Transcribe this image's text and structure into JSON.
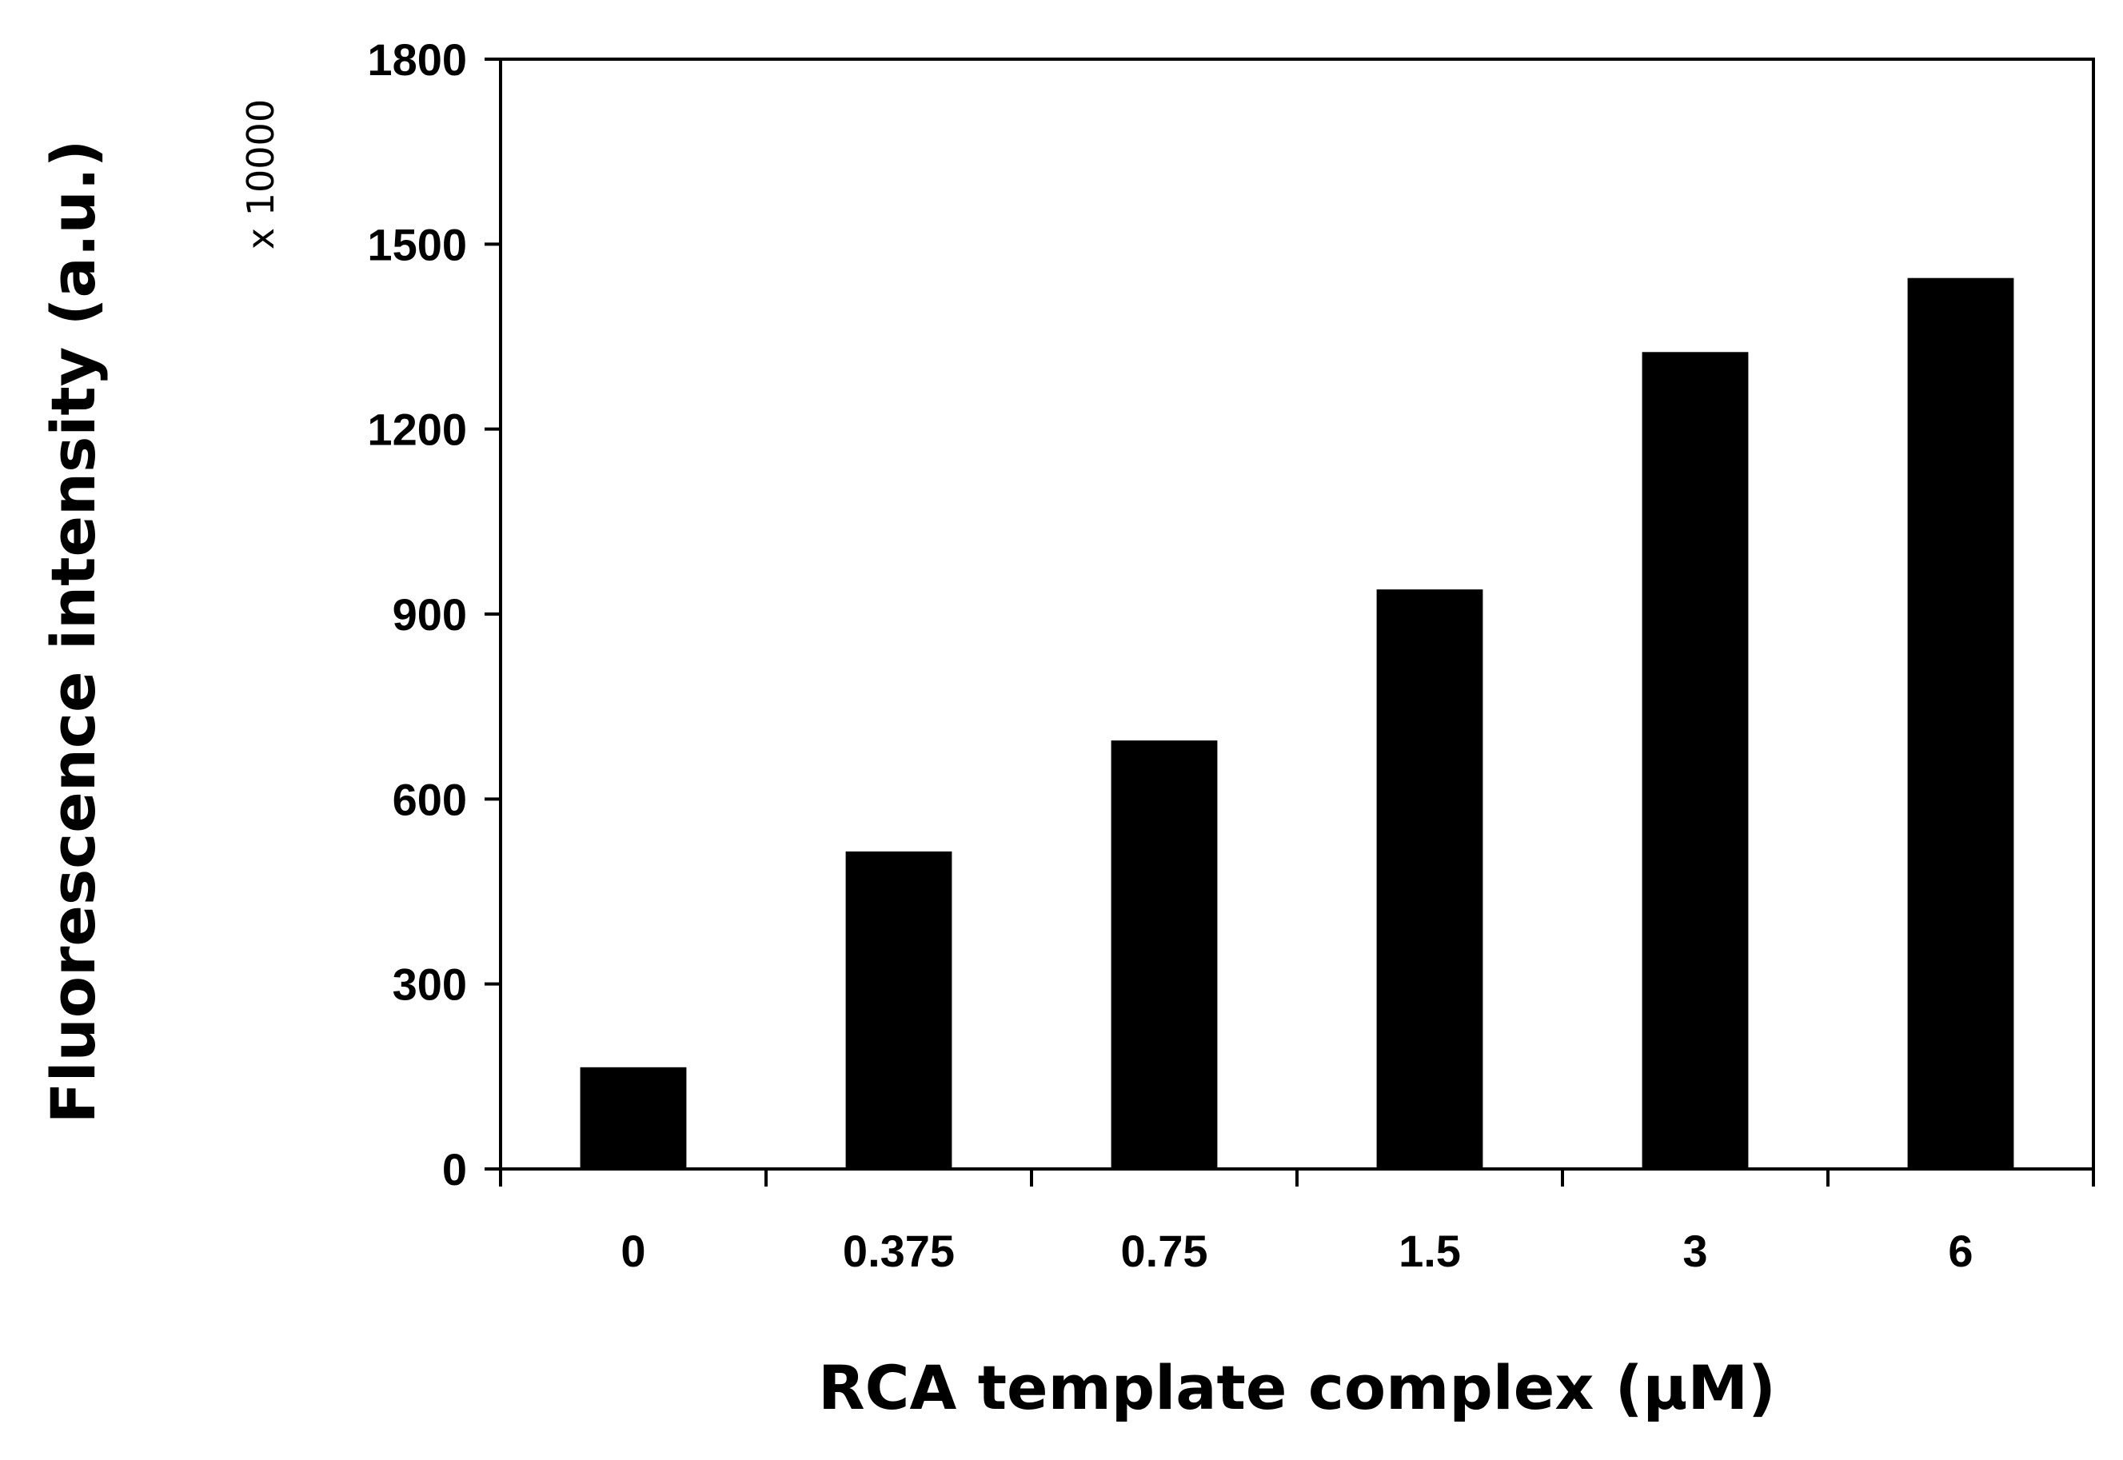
{
  "chart_data": {
    "type": "bar",
    "categories": [
      "0",
      "0.375",
      "0.75",
      "1.5",
      "3",
      "6"
    ],
    "values": [
      165,
      515,
      695,
      940,
      1325,
      1445
    ],
    "xlabel": "RCA template complex (μM)",
    "ylabel": "Fluorescence intensity (a.u.)",
    "y_multiplier": "x 10000",
    "ylim": [
      0,
      1800
    ],
    "yticks": [
      0,
      300,
      600,
      900,
      1200,
      1500,
      1800
    ],
    "bar_color": "#000000",
    "grid": false,
    "legend": "none"
  }
}
